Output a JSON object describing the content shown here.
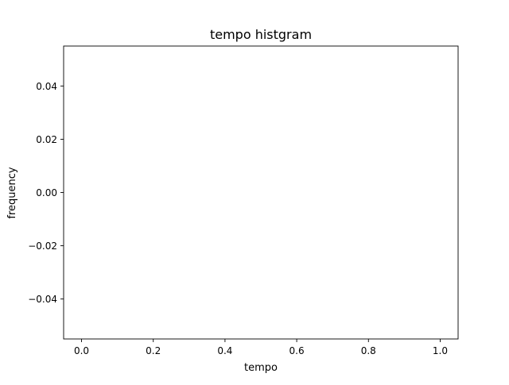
{
  "chart_data": {
    "type": "bar",
    "title": "tempo histgram",
    "xlabel": "tempo",
    "ylabel": "frequency",
    "xlim": [
      -0.05,
      1.05
    ],
    "ylim": [
      -0.055,
      0.055
    ],
    "xticks": [
      0.0,
      0.2,
      0.4,
      0.6,
      0.8,
      1.0
    ],
    "xtick_labels": [
      "0.0",
      "0.2",
      "0.4",
      "0.6",
      "0.8",
      "1.0"
    ],
    "yticks": [
      0.04,
      0.02,
      0.0,
      -0.02,
      -0.04
    ],
    "ytick_labels": [
      "0.04",
      "0.02",
      "0.00",
      "−0.02",
      "−0.04"
    ],
    "values": [],
    "grid": false
  }
}
